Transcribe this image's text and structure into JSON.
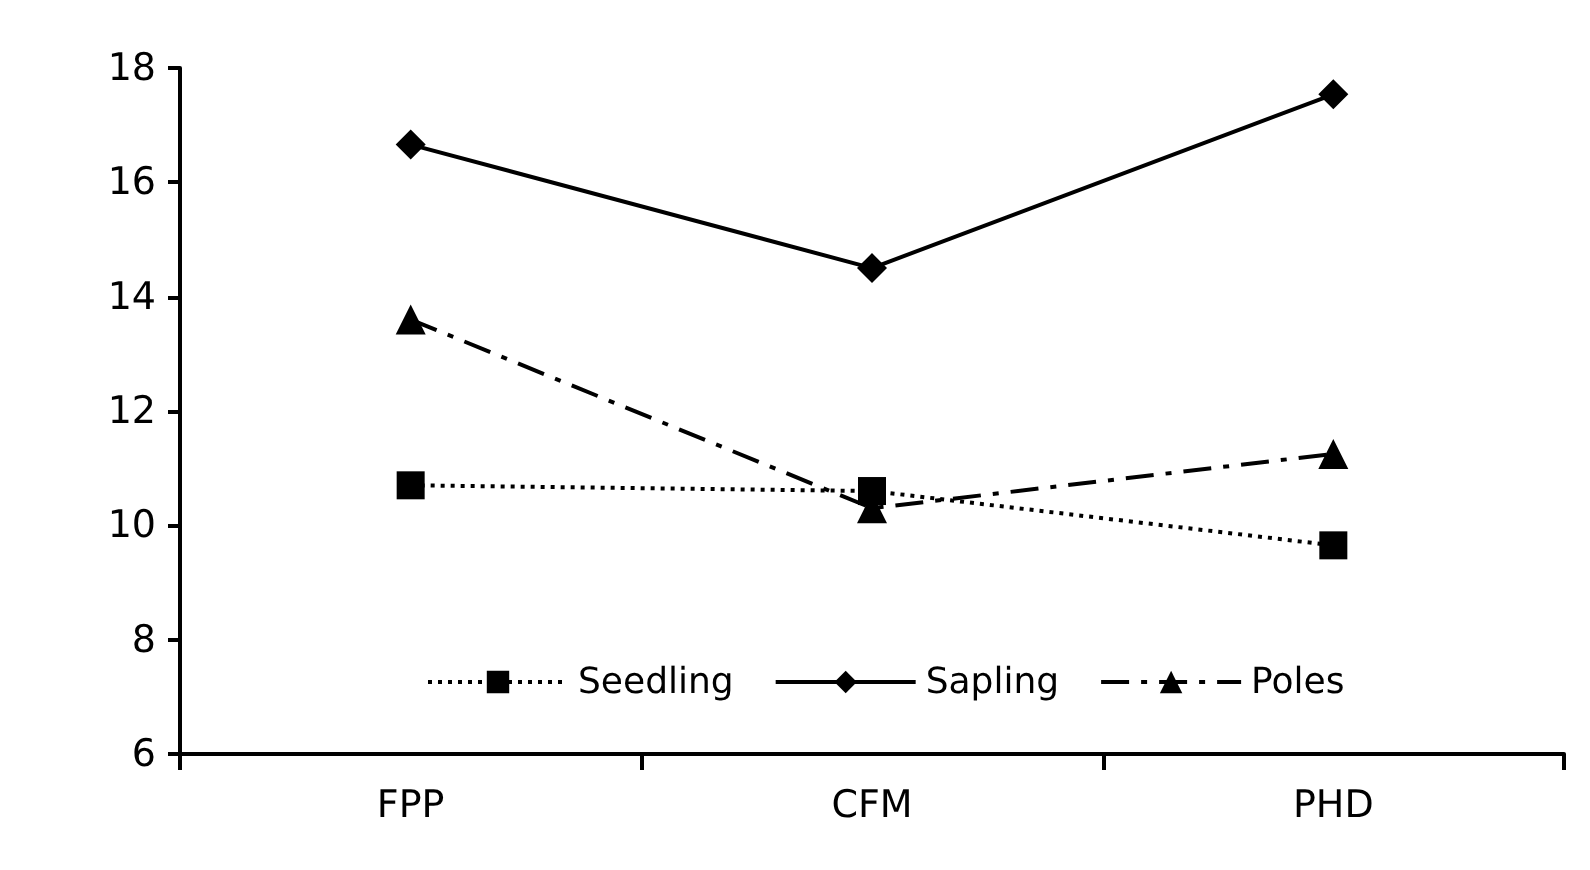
{
  "chart_data": {
    "type": "line",
    "categories": [
      "FPP",
      "CFM",
      "PHD"
    ],
    "series": [
      {
        "name": "Seedling",
        "color": "#000000",
        "marker": "square",
        "line_style": "dotted",
        "values": [
          10.7,
          10.6,
          9.65
        ]
      },
      {
        "name": "Sapling",
        "color": "#000000",
        "marker": "diamond",
        "line_style": "solid",
        "values": [
          16.66,
          14.5,
          17.54
        ]
      },
      {
        "name": "Poles",
        "color": "#000000",
        "marker": "triangle",
        "line_style": "dashed",
        "values": [
          13.6,
          10.3,
          11.25
        ]
      }
    ],
    "ylim": [
      6,
      18
    ],
    "yticks": [
      6,
      8,
      10,
      12,
      14,
      16,
      18
    ],
    "grid": false,
    "legend": "bottom"
  }
}
